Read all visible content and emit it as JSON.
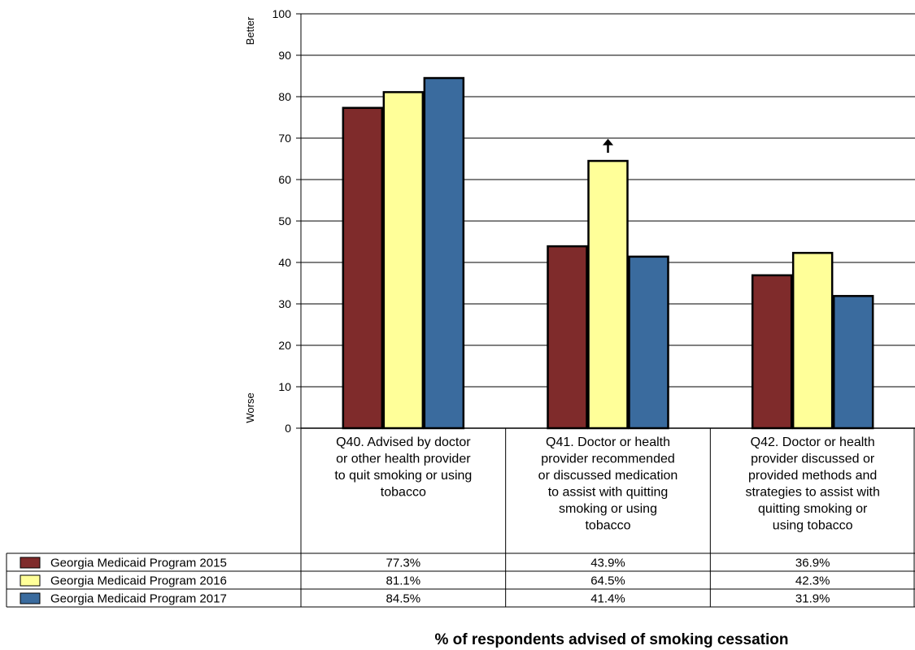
{
  "chart_data": {
    "type": "bar",
    "title": "% of respondents advised of smoking cessation",
    "ylim": [
      0,
      100
    ],
    "yticks": [
      0,
      10,
      20,
      30,
      40,
      50,
      60,
      70,
      80,
      90,
      100
    ],
    "y_top_label": "Better",
    "y_bottom_label": "Worse",
    "grid": true,
    "categories": [
      "Q40. Advised by doctor or other health provider to quit smoking or using tobacco",
      "Q41. Doctor or health provider recommended or discussed medication to assist with quitting smoking or using tobacco",
      "Q42. Doctor or health provider discussed or provided methods and strategies to assist with quitting smoking or using tobacco"
    ],
    "category_lines": [
      [
        "Q40. Advised by doctor",
        "or other health provider",
        "to quit smoking or using",
        "tobacco"
      ],
      [
        "Q41. Doctor or health",
        "provider recommended",
        "or discussed medication",
        "to assist with quitting",
        "smoking or using",
        "tobacco"
      ],
      [
        "Q42. Doctor or health",
        "provider discussed or",
        "provided methods and",
        "strategies to assist with",
        "quitting smoking or",
        "using tobacco"
      ]
    ],
    "series": [
      {
        "name": "Georgia Medicaid Program 2015",
        "color": "#7f2b2b",
        "values": [
          77.3,
          43.9,
          36.9
        ],
        "labels": [
          "77.3%",
          "43.9%",
          "36.9%"
        ]
      },
      {
        "name": "Georgia Medicaid Program 2016",
        "color": "#ffff99",
        "values": [
          81.1,
          64.5,
          42.3
        ],
        "labels": [
          "81.1%",
          "64.5%",
          "42.3%"
        ]
      },
      {
        "name": "Georgia Medicaid Program 2017",
        "color": "#3a6b9e",
        "values": [
          84.5,
          41.4,
          31.9
        ],
        "labels": [
          "84.5%",
          "41.4%",
          "31.9%"
        ]
      }
    ],
    "annotations": [
      {
        "type": "up-arrow",
        "series": 1,
        "category": 1,
        "meaning": "significant increase"
      }
    ]
  }
}
